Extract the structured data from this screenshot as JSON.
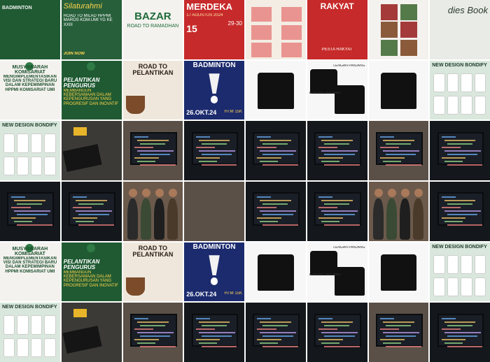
{
  "grid": {
    "cols": 8,
    "rows": 6
  },
  "tiles": [
    {
      "name": "post-road-to-milad-jalan",
      "theme": "t-green",
      "lines": [
        "BADMINTON"
      ]
    },
    {
      "name": "post-silaturahmi",
      "theme": "t-green2",
      "lines": [
        "Silaturahmi",
        "ROAD TO MILAD HPPMI MAROS KOM.UMI YG KE XXIII",
        "JOIN NOW"
      ]
    },
    {
      "name": "post-bazar-road-to-ramadhan",
      "theme": "t-white",
      "lines": [
        "BAZAR",
        "ROAD TO RAMADHAN"
      ]
    },
    {
      "name": "post-merdeka",
      "theme": "t-red",
      "lines": [
        "MERDEKA",
        "17 AGUSTUS 2024",
        "15",
        "29-30"
      ]
    },
    {
      "name": "post-lomba-list",
      "theme": "t-paper",
      "lines": []
    },
    {
      "name": "post-rakyat",
      "theme": "t-red",
      "lines": [
        "RAKYAT",
        "PESTA RAKYAT"
      ]
    },
    {
      "name": "post-dokumentasi-collage",
      "theme": "t-white",
      "lines": []
    },
    {
      "name": "post-dies-book",
      "theme": "t-book",
      "lines": [
        "dies Book"
      ]
    },
    {
      "name": "post-musyawarah-komisariat",
      "theme": "t-white",
      "lines": [
        "MUSYAWARAH KOMISARIAT",
        "MENGIMPLEMENTASIKAN VISI DAN STRATEGI BARU DALAM KEPEMIMPINAN HPPMI KOMISARIAT UMI"
      ]
    },
    {
      "name": "post-pelantikan-pengurus",
      "theme": "t-green",
      "lines": [
        "PELANTIKAN PENGURUS",
        "MEMBANGUN KEBERSAMAAN DALAM KEPENGURUSAN YANG PROGRESIF DAN INOVATIF"
      ]
    },
    {
      "name": "post-road-to-pelantikan",
      "theme": "t-cream",
      "lines": [
        "ROAD TO PELANTIKAN"
      ]
    },
    {
      "name": "post-badminton",
      "theme": "t-navy",
      "lines": [
        "BADMINTON",
        "26.OKT.24",
        "HTM 15K"
      ]
    },
    {
      "name": "photo-black-tshirt",
      "theme": "t-shirt",
      "lines": []
    },
    {
      "name": "photo-tshirt-set",
      "theme": "t-shirt",
      "lines": [
        "LENGAN PANJANG",
        "LENGAN PANJANG"
      ]
    },
    {
      "name": "photo-tshirt-back",
      "theme": "t-shirt",
      "lines": []
    },
    {
      "name": "post-new-design-bondify",
      "theme": "t-mint",
      "lines": [
        "NEW DESIGN BONDIFY"
      ]
    },
    {
      "name": "post-new-design-bondify-2",
      "theme": "t-mint",
      "lines": [
        "NEW DESIGN BONDIFY"
      ]
    },
    {
      "name": "photo-keyboard-desk",
      "theme": "t-desk",
      "lines": []
    },
    {
      "name": "photo-laptop-desk",
      "theme": "t-photo",
      "lines": []
    },
    {
      "name": "photo-code-monitor",
      "theme": "t-dark",
      "lines": []
    },
    {
      "name": "photo-laptop-code",
      "theme": "t-dark",
      "lines": []
    },
    {
      "name": "photo-dark-screen",
      "theme": "t-dark",
      "lines": []
    },
    {
      "name": "photo-monitor-site",
      "theme": "t-photo",
      "lines": []
    },
    {
      "name": "photo-code-editor",
      "theme": "t-dark",
      "lines": []
    },
    {
      "name": "photo-monitor-code",
      "theme": "t-dark",
      "lines": []
    },
    {
      "name": "photo-monitor-code-2",
      "theme": "t-dark",
      "lines": []
    },
    {
      "name": "photo-team-laptop",
      "theme": "t-people",
      "lines": []
    },
    {
      "name": "photo-room-monitor",
      "theme": "t-photo",
      "lines": []
    },
    {
      "name": "photo-editor-screen",
      "theme": "t-dark",
      "lines": []
    },
    {
      "name": "photo-code-screen-2",
      "theme": "t-dark",
      "lines": []
    },
    {
      "name": "photo-group-team",
      "theme": "t-people",
      "lines": []
    },
    {
      "name": "photo-code-laptop-night",
      "theme": "t-dark",
      "lines": []
    },
    {
      "name": "post-musyawarah-komisariat-2",
      "theme": "t-white",
      "lines": [
        "MUSYAWARAH KOMISARIAT",
        "MENGIMPLEMENTASIKAN VISI DAN STRATEGI BARU DALAM KEPEMIMPINAN HPPMI KOMISARIAT UMI"
      ]
    },
    {
      "name": "post-pelantikan-pengurus-2",
      "theme": "t-green",
      "lines": [
        "PELANTIKAN PENGURUS",
        "MEMBANGUN KEBERSAMAAN DALAM KEPENGURUSAN YANG PROGRESIF DAN INOVATIF"
      ]
    },
    {
      "name": "post-road-to-pelantikan-2",
      "theme": "t-cream",
      "lines": [
        "ROAD TO PELANTIKAN"
      ]
    },
    {
      "name": "post-badminton-2",
      "theme": "t-navy",
      "lines": [
        "BADMINTON",
        "26.OKT.24",
        "HTM 15K"
      ]
    },
    {
      "name": "photo-black-tshirt-2",
      "theme": "t-shirt",
      "lines": []
    },
    {
      "name": "photo-tshirt-set-2",
      "theme": "t-shirt",
      "lines": [
        "LENGAN PANJANG",
        "LENGAN PANJANG"
      ]
    },
    {
      "name": "photo-tshirt-back-2",
      "theme": "t-shirt",
      "lines": []
    },
    {
      "name": "post-new-design-bondify-3",
      "theme": "t-mint",
      "lines": [
        "NEW DESIGN BONDIFY"
      ]
    },
    {
      "name": "post-new-design-bondify-4",
      "theme": "t-mint",
      "lines": [
        "NEW DESIGN BONDIFY"
      ]
    },
    {
      "name": "photo-keyboard-desk-2",
      "theme": "t-desk",
      "lines": []
    },
    {
      "name": "photo-laptop-desk-2",
      "theme": "t-photo",
      "lines": []
    },
    {
      "name": "photo-code-monitor-2",
      "theme": "t-dark",
      "lines": []
    },
    {
      "name": "photo-laptop-code-2",
      "theme": "t-dark",
      "lines": []
    },
    {
      "name": "photo-dark-screen-2",
      "theme": "t-dark",
      "lines": []
    },
    {
      "name": "photo-monitor-site-2",
      "theme": "t-photo",
      "lines": []
    },
    {
      "name": "photo-code-editor-2",
      "theme": "t-dark",
      "lines": []
    }
  ]
}
